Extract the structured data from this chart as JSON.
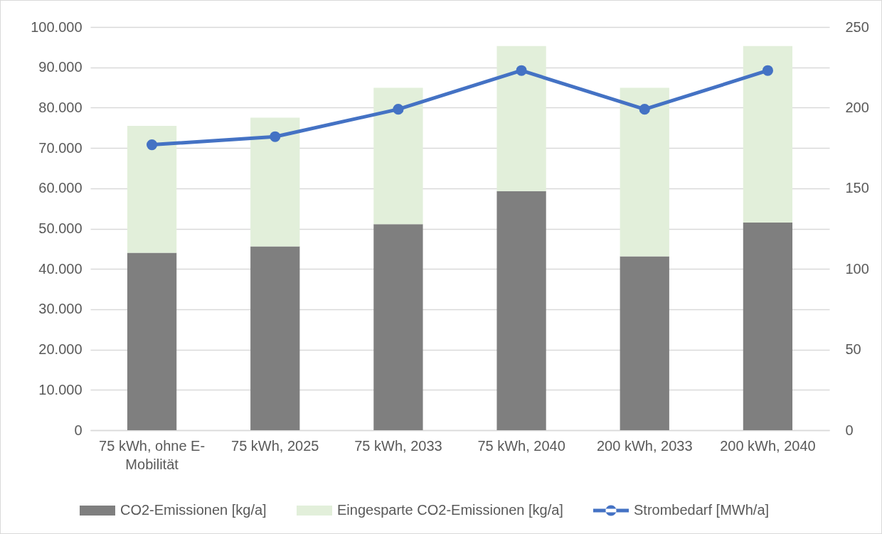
{
  "chart_data": {
    "type": "bar",
    "stacked": true,
    "categories": [
      "75 kWh, ohne E-Mobilität",
      "75 kWh, 2025",
      "75 kWh, 2033",
      "75 kWh, 2040",
      "200 kWh, 2033",
      "200 kWh, 2040"
    ],
    "series": [
      {
        "name": "CO2-Emissionen [kg/a]",
        "color": "#7f7f7f",
        "values": [
          44000,
          45600,
          51100,
          59300,
          43100,
          51500
        ]
      },
      {
        "name": "Eingesparte CO2-Emissionen [kg/a]",
        "color": "#e2efda",
        "values": [
          31500,
          31900,
          33800,
          36000,
          41800,
          43800
        ]
      },
      {
        "name": "Strombedarf [MWh/a]",
        "type": "line",
        "axis": "y2",
        "color": "#4472c4",
        "marker": "circle",
        "values": [
          177,
          182,
          199,
          223,
          199,
          223
        ]
      }
    ],
    "ylim": [
      0,
      100000
    ],
    "yticks": [
      0,
      {
        "value": 10000,
        "label": "10.000"
      },
      {
        "value": 20000,
        "label": "20.000"
      },
      {
        "value": 30000,
        "label": "30.000"
      },
      {
        "value": 40000,
        "label": "40.000"
      },
      {
        "value": 50000,
        "label": "50.000"
      },
      {
        "value": 60000,
        "label": "60.000"
      },
      {
        "value": 70000,
        "label": "70.000"
      },
      {
        "value": 80000,
        "label": "80.000"
      },
      {
        "value": 90000,
        "label": "90.000"
      },
      {
        "value": 100000,
        "label": "100.000"
      }
    ],
    "y2lim": [
      0,
      250
    ],
    "y2ticks": [
      0,
      50,
      100,
      150,
      200,
      250
    ],
    "grid": "y",
    "legend": "bottom"
  }
}
